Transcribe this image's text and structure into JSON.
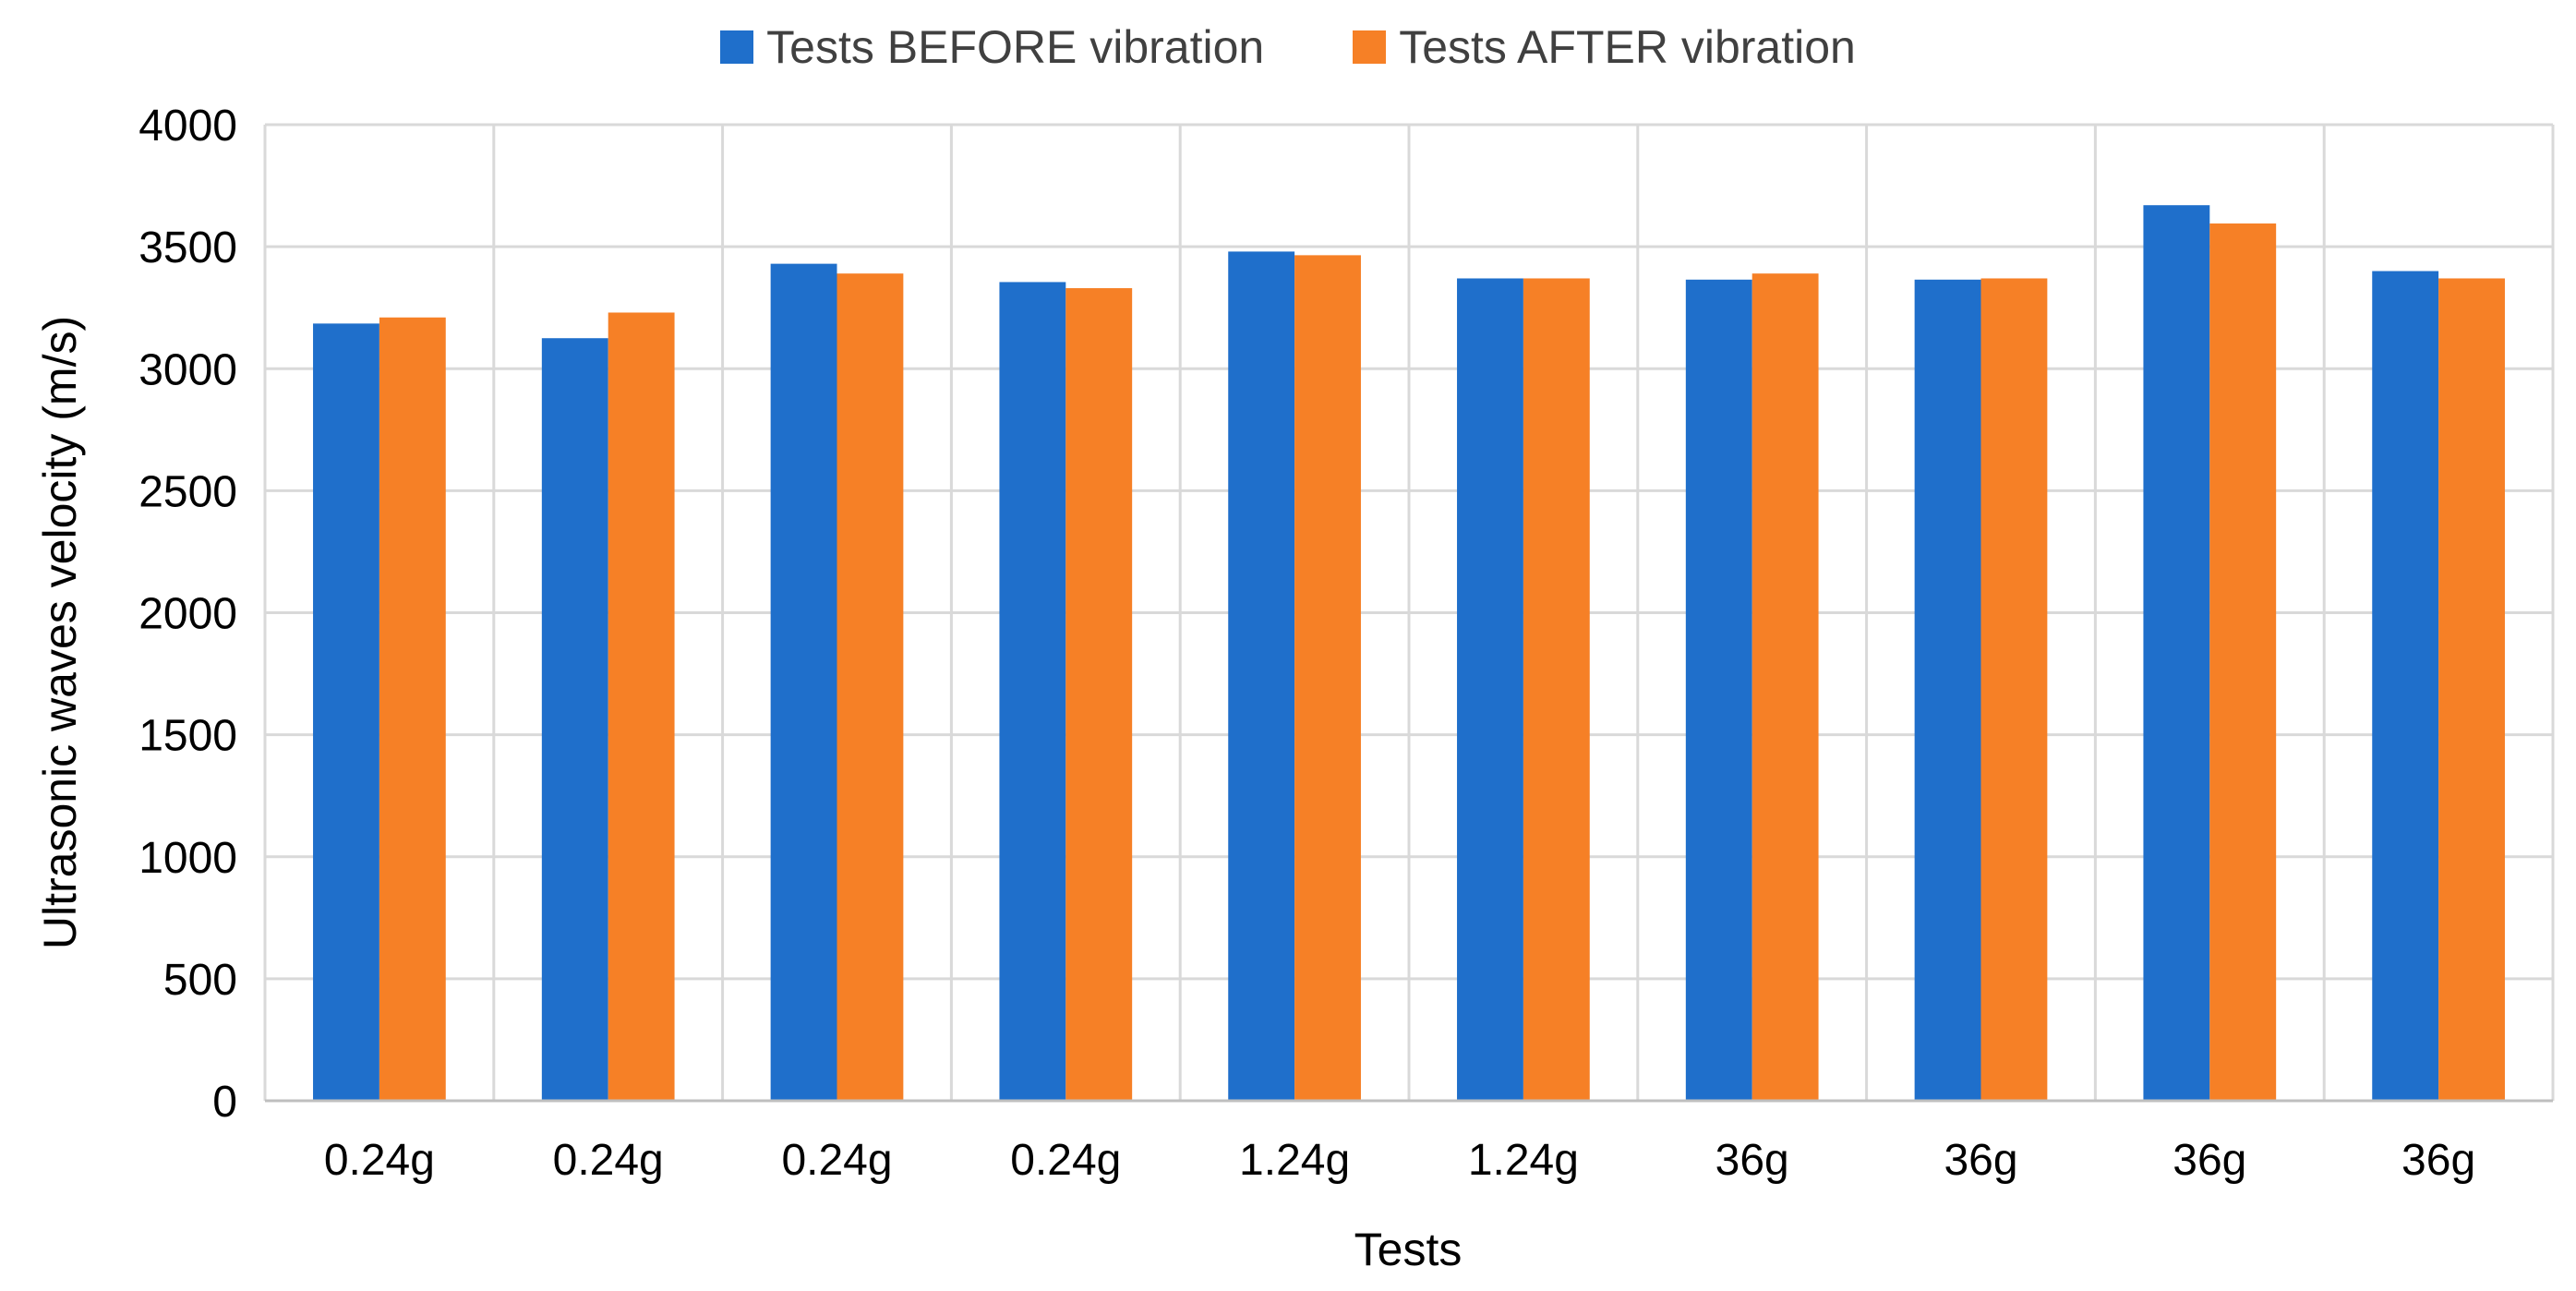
{
  "chart_data": {
    "type": "bar",
    "title": "",
    "xlabel": "Tests",
    "ylabel": "Ultrasonic waves velocity (m/s)",
    "ylim": [
      0,
      4000
    ],
    "yticks": [
      0,
      500,
      1000,
      1500,
      2000,
      2500,
      3000,
      3500,
      4000
    ],
    "grid": true,
    "legend_position": "top-center",
    "categories": [
      "0.24g",
      "0.24g",
      "0.24g",
      "0.24g",
      "1.24g",
      "1.24g",
      "36g",
      "36g",
      "36g",
      "36g"
    ],
    "series": [
      {
        "name": "Tests BEFORE vibration",
        "color": "#1F6FCB",
        "values": [
          3185,
          3125,
          3430,
          3355,
          3480,
          3370,
          3365,
          3365,
          3670,
          3400
        ]
      },
      {
        "name": "Tests AFTER vibration",
        "color": "#F68026",
        "values": [
          3210,
          3230,
          3390,
          3330,
          3465,
          3370,
          3390,
          3370,
          3595,
          3370
        ]
      }
    ]
  }
}
